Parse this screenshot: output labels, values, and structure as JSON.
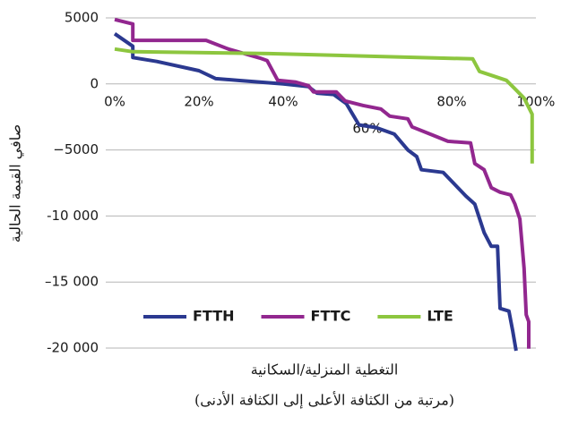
{
  "chart_data": {
    "type": "line",
    "xlabel": "التغطية المنزلية/السكانية",
    "xlabel2": "(مرتبة من الكثافة الأعلى إلى الكثافة الأدنى)",
    "ylabel": "صافي القيمة الحالية",
    "xlim": [
      0,
      100
    ],
    "ylim": [
      -20000,
      5000
    ],
    "xticks": [
      {
        "value": 0,
        "label": "0%"
      },
      {
        "value": 20,
        "label": "20%"
      },
      {
        "value": 40,
        "label": "40%"
      },
      {
        "value": 60,
        "label": "60%"
      },
      {
        "value": 80,
        "label": "80%"
      },
      {
        "value": 100,
        "label": "100%"
      }
    ],
    "yticks": [
      5000,
      0,
      {
        "value": -5000,
        "label": "−5000"
      },
      {
        "value": -10000,
        "label": "-10 000"
      },
      {
        "value": -15000,
        "label": "–15 000"
      },
      {
        "value": -20000,
        "label": "-20 000"
      }
    ],
    "grid": true,
    "legend": "lower left",
    "series": [
      {
        "name": "FTTH",
        "color": "#2b3990",
        "x": [
          0,
          4.3,
          4.3,
          10,
          20,
          24,
          30,
          40,
          46,
          48,
          52,
          55,
          58,
          62,
          66.4,
          69.6,
          71.7,
          72.8,
          78,
          83.4,
          85.5,
          87.7,
          89.4,
          90.9,
          91.5,
          93.6,
          94.5,
          95.3
        ],
        "values": [
          3800,
          2850,
          2000,
          1700,
          1000,
          400,
          250,
          0,
          -200,
          -700,
          -800,
          -1500,
          -3100,
          -3300,
          -3800,
          -5000,
          -5500,
          -6500,
          -6700,
          -8500,
          -9100,
          -11250,
          -12300,
          -12300,
          -17000,
          -17200,
          -18700,
          -20200
        ]
      },
      {
        "name": "FTTC",
        "color": "#92278f",
        "x": [
          0,
          4.3,
          4.3,
          21.7,
          27,
          34.5,
          36.2,
          38.7,
          43,
          46,
          47.2,
          52.6,
          54.7,
          59,
          63.2,
          65.3,
          69.6,
          70.6,
          74.9,
          79.1,
          84.5,
          85.5,
          87.7,
          89.4,
          91.5,
          94,
          95,
          96.2,
          97.2,
          97.7,
          98.3,
          98.3
        ],
        "values": [
          4880,
          4540,
          3300,
          3300,
          2640,
          1960,
          1760,
          270,
          135,
          -135,
          -600,
          -600,
          -1290,
          -1630,
          -1900,
          -2440,
          -2640,
          -3250,
          -3800,
          -4340,
          -4470,
          -6030,
          -6500,
          -7860,
          -8200,
          -8400,
          -9080,
          -10230,
          -13960,
          -17480,
          -18000,
          -20050
        ]
      },
      {
        "name": "LTE",
        "color": "#8dc63f",
        "x": [
          0,
          4.3,
          36.6,
          85,
          86.6,
          89.8,
          93,
          95.1,
          97.2,
          99.1,
          99.1
        ],
        "values": [
          2640,
          2440,
          2300,
          1900,
          950,
          610,
          270,
          -400,
          -1080,
          -2300,
          -6030
        ]
      }
    ]
  }
}
